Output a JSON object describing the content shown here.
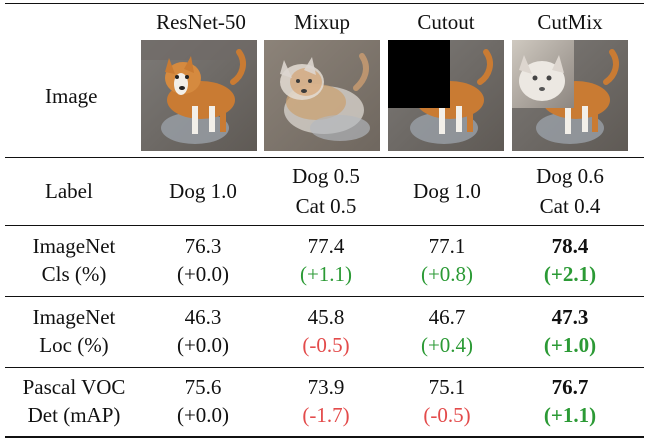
{
  "header": {
    "cols": [
      "ResNet-50",
      "Mixup",
      "Cutout",
      "CutMix"
    ]
  },
  "rows": {
    "image": {
      "label": "Image"
    },
    "label": {
      "title": "Label",
      "cols": [
        {
          "line1": "Dog 1.0",
          "line2": ""
        },
        {
          "line1": "Dog 0.5",
          "line2": "Cat 0.5"
        },
        {
          "line1": "Dog 1.0",
          "line2": ""
        },
        {
          "line1": "Dog 0.6",
          "line2": "Cat 0.4"
        }
      ]
    },
    "metrics": [
      {
        "title_line1": "ImageNet",
        "title_line2": "Cls (%)",
        "values": [
          {
            "value": "76.3",
            "delta": "(+0.0)",
            "delta_type": "neutral",
            "bold": false
          },
          {
            "value": "77.4",
            "delta": "(+1.1)",
            "delta_type": "positive",
            "bold": false
          },
          {
            "value": "77.1",
            "delta": "(+0.8)",
            "delta_type": "positive",
            "bold": false
          },
          {
            "value": "78.4",
            "delta": "(+2.1)",
            "delta_type": "positive",
            "bold": true
          }
        ]
      },
      {
        "title_line1": "ImageNet",
        "title_line2": "Loc (%)",
        "values": [
          {
            "value": "46.3",
            "delta": "(+0.0)",
            "delta_type": "neutral",
            "bold": false
          },
          {
            "value": "45.8",
            "delta": "(-0.5)",
            "delta_type": "negative",
            "bold": false
          },
          {
            "value": "46.7",
            "delta": "(+0.4)",
            "delta_type": "positive",
            "bold": false
          },
          {
            "value": "47.3",
            "delta": "(+1.0)",
            "delta_type": "positive",
            "bold": true
          }
        ]
      },
      {
        "title_line1": "Pascal VOC",
        "title_line2": "Det (mAP)",
        "values": [
          {
            "value": "75.6",
            "delta": "(+0.0)",
            "delta_type": "neutral",
            "bold": false
          },
          {
            "value": "73.9",
            "delta": "(-1.7)",
            "delta_type": "negative",
            "bold": false
          },
          {
            "value": "75.1",
            "delta": "(-0.5)",
            "delta_type": "negative",
            "bold": false
          },
          {
            "value": "76.7",
            "delta": "(+1.1)",
            "delta_type": "positive",
            "bold": true
          }
        ]
      }
    ]
  },
  "colors": {
    "positive": "#2b9a35",
    "negative": "#e34b4b",
    "text": "#111111"
  }
}
